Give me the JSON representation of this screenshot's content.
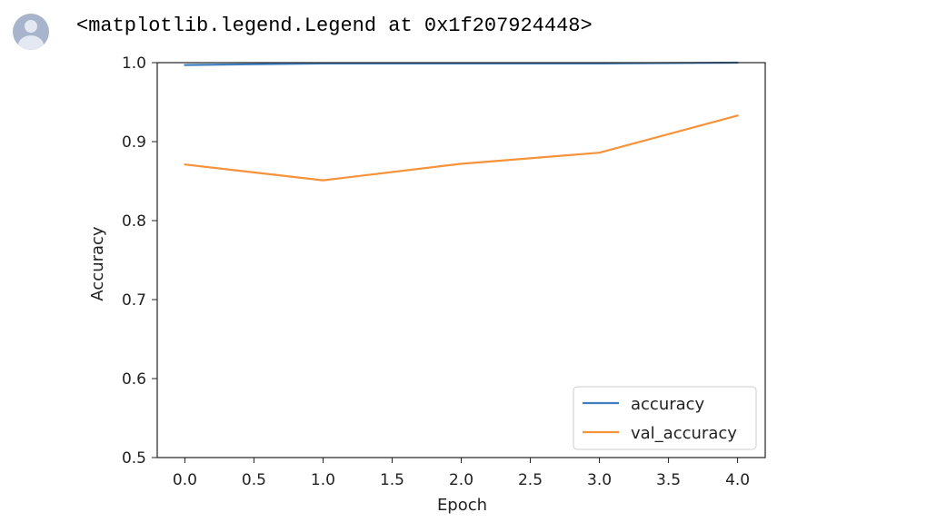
{
  "cell": {
    "output_text": "<matplotlib.legend.Legend at 0x1f207924448>"
  },
  "colors": {
    "accuracy": "#3f7fbf",
    "val_accuracy": "#f5923a",
    "axis": "#222222",
    "avatar": "#a8b4cc"
  },
  "icons": {
    "avatar": "user-avatar-icon"
  },
  "chart_data": {
    "type": "line",
    "title": "",
    "xlabel": "Epoch",
    "ylabel": "Accuracy",
    "xlim": [
      -0.2,
      4.2
    ],
    "ylim": [
      0.5,
      1.0
    ],
    "grid": false,
    "legend_position": "lower-right",
    "x": [
      0,
      1,
      2,
      3,
      4
    ],
    "xticks": [
      "0.0",
      "0.5",
      "1.0",
      "1.5",
      "2.0",
      "2.5",
      "3.0",
      "3.5",
      "4.0"
    ],
    "yticks": [
      "0.5",
      "0.6",
      "0.7",
      "0.8",
      "0.9",
      "1.0"
    ],
    "series": [
      {
        "name": "accuracy",
        "values": [
          0.997,
          0.999,
          0.999,
          0.999,
          1.0
        ]
      },
      {
        "name": "val_accuracy",
        "values": [
          0.871,
          0.851,
          0.872,
          0.886,
          0.933
        ]
      }
    ]
  }
}
